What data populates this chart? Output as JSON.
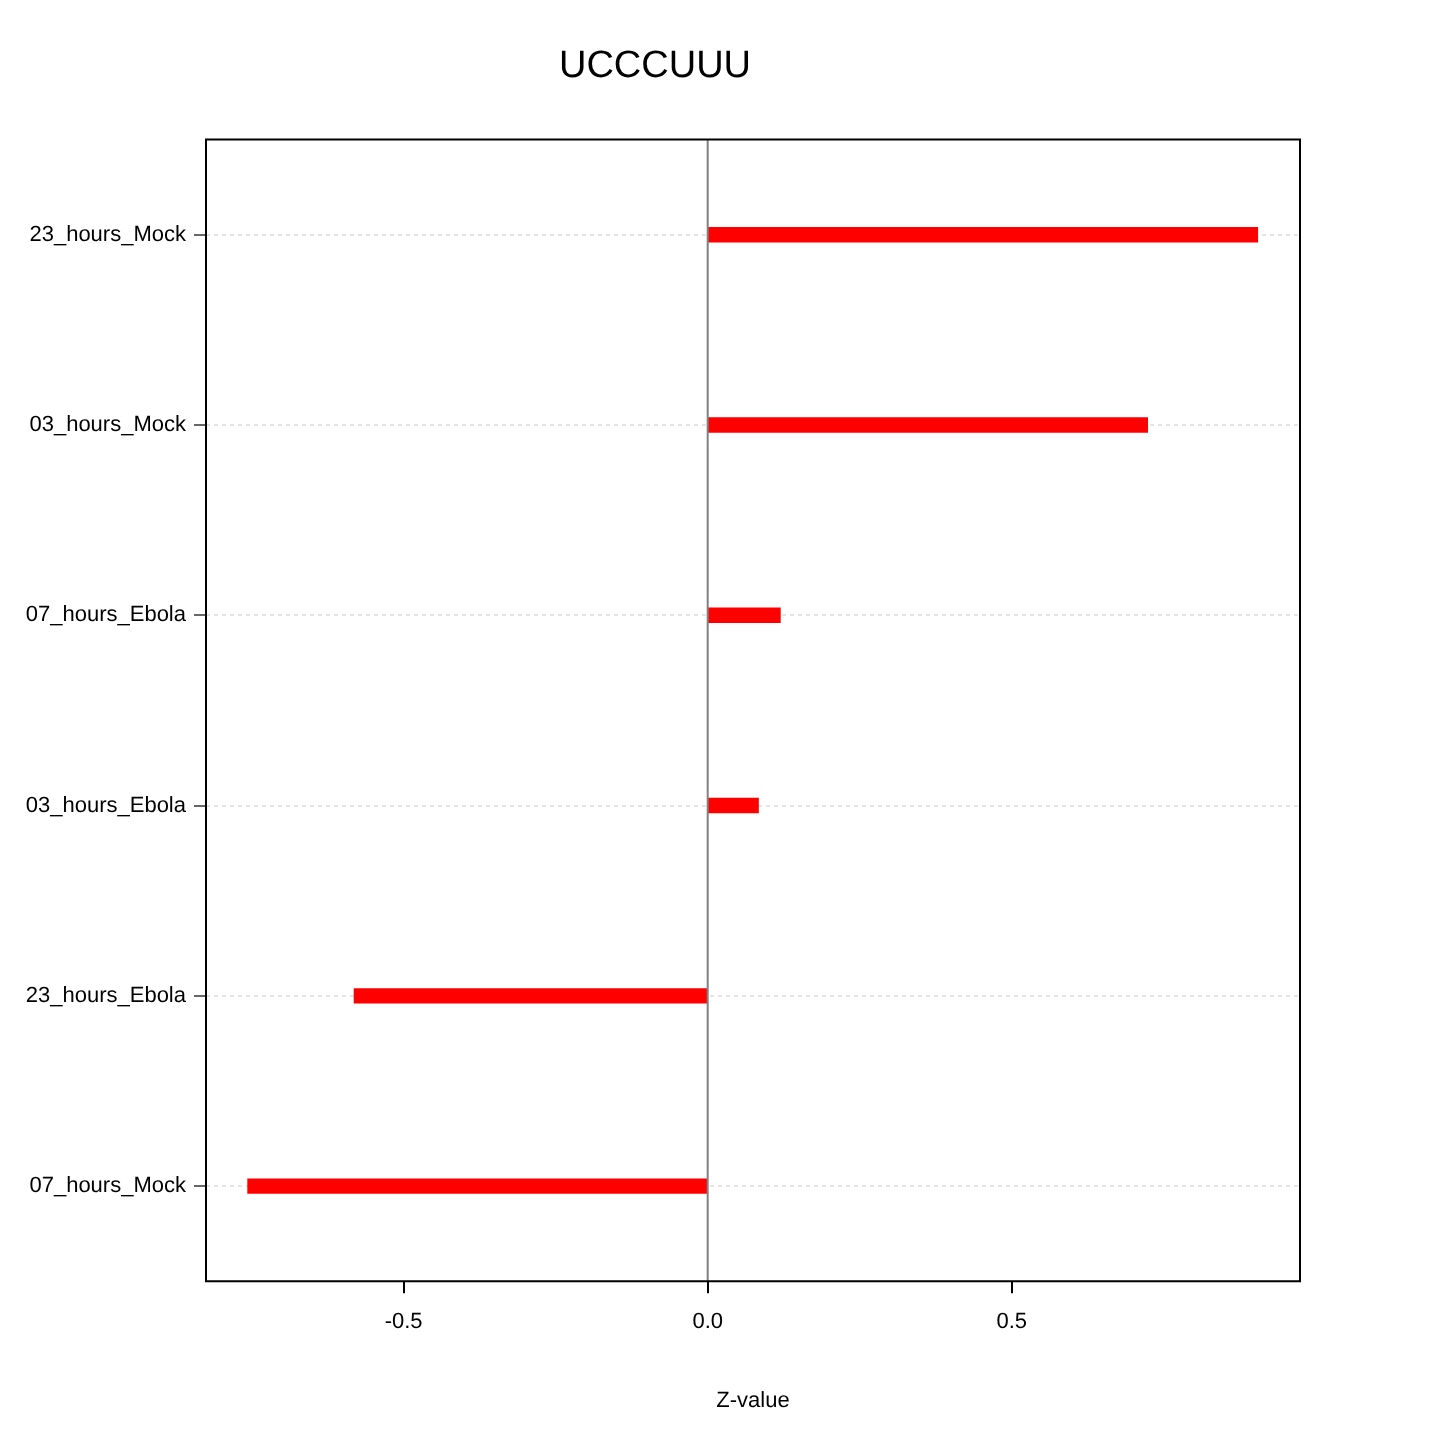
{
  "chart_data": {
    "type": "bar",
    "orientation": "horizontal",
    "title": "UCCCUUU",
    "xlabel": "Z-value",
    "categories": [
      "23_hours_Mock",
      "03_hours_Mock",
      "07_hours_Ebola",
      "03_hours_Ebola",
      "23_hours_Ebola",
      "07_hours_Mock"
    ],
    "values": [
      0.904,
      0.723,
      0.119,
      0.083,
      -0.581,
      -0.756
    ],
    "color": "#ff0000",
    "xlim": [
      -0.825,
      0.974
    ],
    "xticks": [
      -0.5,
      {
        "value": 0,
        "label": "0.0"
      },
      0.5
    ],
    "grid": "y",
    "legend": false,
    "ref_lines": [
      {
        "axis": "x",
        "value": 0,
        "color": "#808080"
      }
    ]
  }
}
